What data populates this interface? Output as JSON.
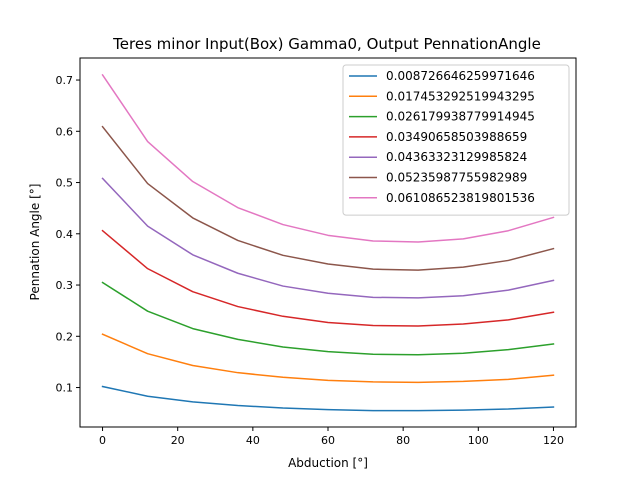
{
  "chart_data": {
    "type": "line",
    "title": "Teres minor Input(Box) Gamma0, Output PennationAngle",
    "xlabel": "Abduction [°]",
    "ylabel": "Pennation Angle [°]",
    "xlim": [
      -6,
      126
    ],
    "ylim": [
      0.023,
      0.743
    ],
    "xticks": [
      0,
      20,
      40,
      60,
      80,
      100,
      120
    ],
    "yticks": [
      0.1,
      0.2,
      0.3,
      0.4,
      0.5,
      0.6,
      0.7
    ],
    "grid": false,
    "legend_position": "top-right",
    "x": [
      0,
      12,
      24,
      36,
      48,
      60,
      72,
      84,
      96,
      108,
      120
    ],
    "series": [
      {
        "name": "0.008726646259971646",
        "color": "#1f77b4",
        "values": [
          0.102,
          0.083,
          0.072,
          0.065,
          0.06,
          0.057,
          0.055,
          0.055,
          0.056,
          0.058,
          0.062
        ]
      },
      {
        "name": "0.017453292519943295",
        "color": "#ff7f0e",
        "values": [
          0.204,
          0.166,
          0.143,
          0.129,
          0.12,
          0.114,
          0.111,
          0.11,
          0.112,
          0.116,
          0.124
        ]
      },
      {
        "name": "0.026179938779914945",
        "color": "#2ca02c",
        "values": [
          0.305,
          0.249,
          0.215,
          0.194,
          0.179,
          0.17,
          0.165,
          0.164,
          0.167,
          0.174,
          0.185
        ]
      },
      {
        "name": "0.03490658503988659",
        "color": "#d62728",
        "values": [
          0.406,
          0.332,
          0.287,
          0.258,
          0.239,
          0.227,
          0.221,
          0.22,
          0.224,
          0.232,
          0.247
        ]
      },
      {
        "name": "0.04363323129985824",
        "color": "#9467bd",
        "values": [
          0.508,
          0.415,
          0.359,
          0.323,
          0.298,
          0.284,
          0.276,
          0.275,
          0.279,
          0.29,
          0.309
        ]
      },
      {
        "name": "0.05235987755982989",
        "color": "#8c564b",
        "values": [
          0.609,
          0.498,
          0.431,
          0.387,
          0.358,
          0.341,
          0.331,
          0.329,
          0.335,
          0.348,
          0.371
        ]
      },
      {
        "name": "0.061086523819801536",
        "color": "#e377c2",
        "values": [
          0.71,
          0.58,
          0.502,
          0.451,
          0.418,
          0.397,
          0.386,
          0.384,
          0.39,
          0.406,
          0.432
        ]
      }
    ]
  }
}
